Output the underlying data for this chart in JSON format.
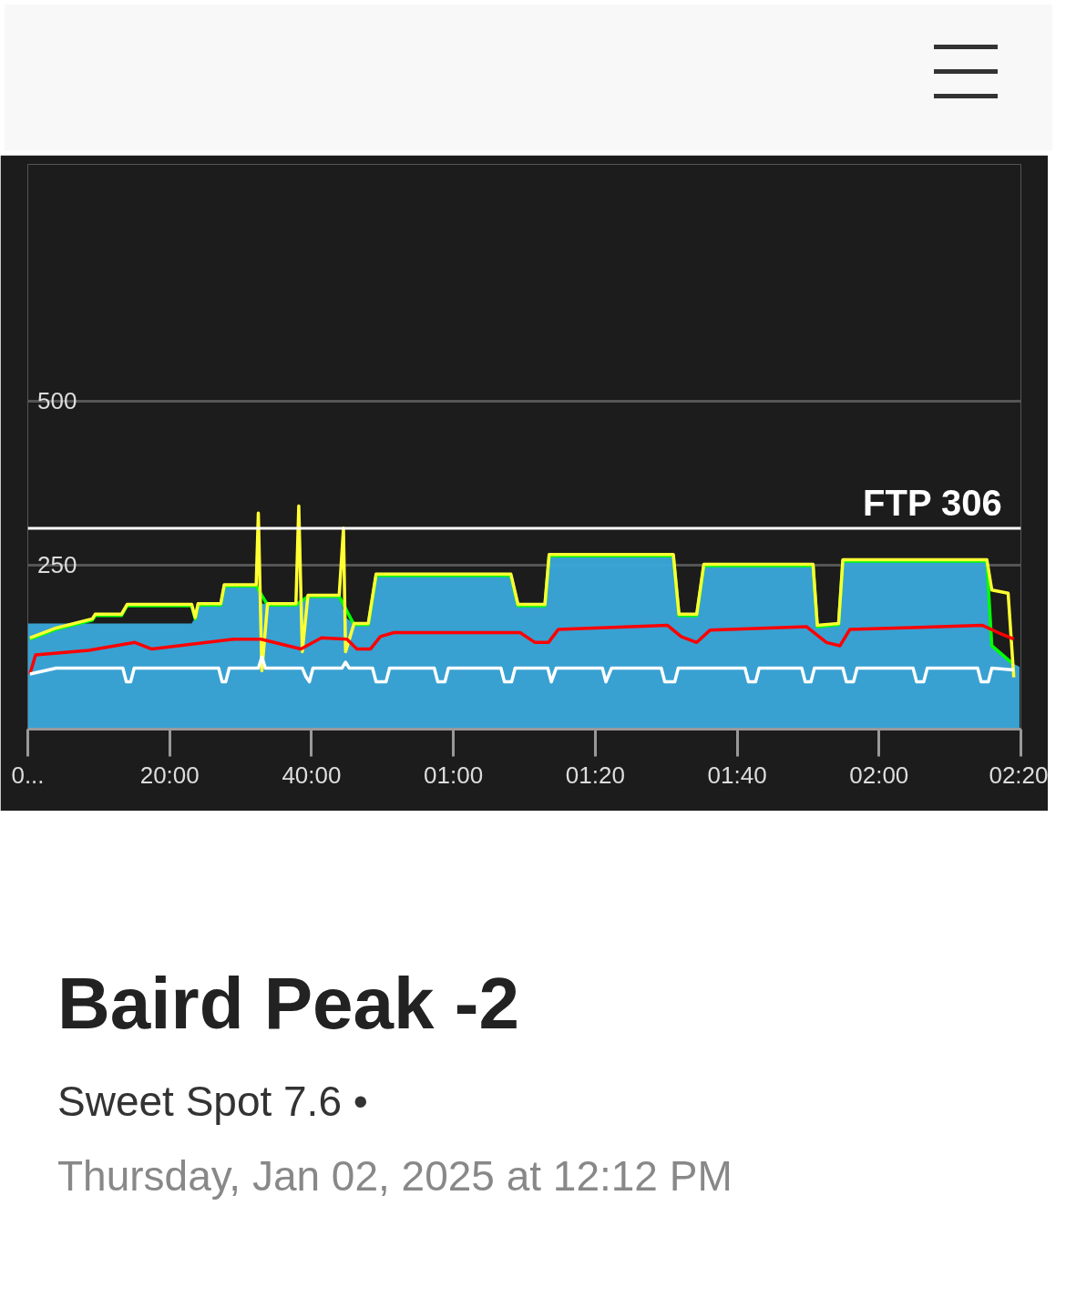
{
  "chart_data": {
    "type": "line",
    "title": "Baird Peak -2",
    "subtitle": "Sweet Spot 7.6 •",
    "annotations": [
      "Thursday, Jan 02, 2025 at 12:12 PM"
    ],
    "xlim": [
      0,
      140
    ],
    "ylim": [
      0,
      860
    ],
    "xticks": [
      {
        "value": 0,
        "label": "0..."
      },
      {
        "value": 20,
        "label": "20:00"
      },
      {
        "value": 40,
        "label": "40:00"
      },
      {
        "value": 60,
        "label": "01:00"
      },
      {
        "value": 80,
        "label": "01:20"
      },
      {
        "value": 100,
        "label": "01:40"
      },
      {
        "value": 120,
        "label": "02:00"
      },
      {
        "value": 140,
        "label": "02:20"
      }
    ],
    "yticks": [
      250,
      500
    ],
    "grid": "y",
    "ref_lines": [
      {
        "axis": "y",
        "value": 306,
        "label": "FTP 306",
        "color": "#ffffff"
      }
    ],
    "series": [
      {
        "type": "area",
        "color": "#3aa9dc",
        "x": [
          0,
          23.1,
          23.6,
          24.0,
          27.2,
          27.7,
          32.2,
          33.0,
          37.8,
          39.5,
          43.9,
          44.8,
          46.0,
          48.0,
          49.1,
          68.1,
          69.1,
          72.9,
          73.5,
          91.0,
          91.8,
          94.3,
          95.3,
          110.7,
          111.3,
          114.3,
          114.9,
          135.2,
          135.9,
          138.7,
          139.8
        ],
        "values": [
          161,
          161,
          170,
          191,
          191,
          220,
          220,
          191,
          191,
          204,
          204,
          170,
          161,
          161,
          236,
          236,
          190,
          190,
          266,
          266,
          175,
          175,
          251,
          251,
          158,
          161,
          258,
          258,
          127,
          101,
          95
        ]
      },
      {
        "color": "#00ff00",
        "x": [
          0.3,
          4.0,
          9.1,
          9.5,
          13.2,
          14.0,
          23.1,
          23.6,
          24.0,
          27.2,
          27.7,
          32.2,
          33.8,
          37.8,
          39.5,
          43.9,
          46.0,
          48.0,
          49.1,
          68.1,
          69.1,
          72.9,
          73.5,
          91.0,
          91.8,
          94.3,
          95.3,
          110.7,
          111.3,
          114.3,
          114.9,
          135.2,
          135.9,
          138.7
        ],
        "values": [
          137,
          152,
          166,
          173,
          173,
          188,
          188,
          168,
          189,
          189,
          218,
          218,
          189,
          189,
          202,
          202,
          159,
          159,
          234,
          234,
          188,
          188,
          264,
          264,
          173,
          173,
          249,
          249,
          156,
          159,
          256,
          256,
          127,
          101
        ]
      },
      {
        "type": "line",
        "color": "#ffff33",
        "x": [
          0.3,
          4.0,
          9.1,
          9.5,
          13.2,
          14.0,
          23.1,
          23.6,
          24.0,
          27.2,
          27.7,
          32.2,
          32.5,
          33.0,
          33.8,
          37.8,
          38.2,
          38.7,
          39.5,
          43.9,
          44.5,
          44.8,
          46.0,
          48.0,
          49.1,
          68.1,
          69.1,
          72.9,
          73.5,
          91.0,
          91.8,
          94.3,
          95.3,
          110.7,
          111.3,
          114.3,
          114.9,
          135.2,
          135.9,
          138.2,
          139.0
        ],
        "values": [
          139,
          154,
          168,
          175,
          175,
          190,
          190,
          170,
          191,
          191,
          220,
          220,
          329,
          89,
          191,
          191,
          340,
          118,
          204,
          204,
          306,
          118,
          161,
          161,
          236,
          236,
          190,
          190,
          266,
          266,
          175,
          175,
          251,
          251,
          158,
          161,
          258,
          258,
          212,
          207,
          79
        ]
      },
      {
        "type": "line",
        "color": "#ff0000",
        "x": [
          0.3,
          1.1,
          8.6,
          15.1,
          17.5,
          29.1,
          32.9,
          38.5,
          41.4,
          45.0,
          46.4,
          48.3,
          49.7,
          51.6,
          69.4,
          71.5,
          73.4,
          74.8,
          90.2,
          92.1,
          94.3,
          96.2,
          109.8,
          112.6,
          114.5,
          115.9,
          134.6,
          136.8,
          139.0
        ],
        "values": [
          84,
          113,
          120,
          132,
          122,
          137,
          137,
          122,
          139,
          137,
          122,
          122,
          141,
          147,
          147,
          132,
          132,
          152,
          158,
          141,
          132,
          151,
          156,
          132,
          127,
          152,
          158,
          147,
          137
        ]
      },
      {
        "type": "line",
        "color": "#ffffff",
        "x": [
          0.3,
          4,
          13.4,
          13.9,
          14.5,
          15,
          26.9,
          27.4,
          27.9,
          28.4,
          32.5,
          33,
          33.5,
          38.7,
          39.2,
          39.7,
          40.2,
          44.3,
          44.8,
          45.3,
          48.6,
          49.1,
          50.5,
          51,
          57.3,
          57.8,
          58.8,
          59.3,
          66.7,
          67.2,
          68.2,
          68.7,
          73.3,
          73.8,
          74.5,
          81,
          81.5,
          82.3,
          89.3,
          89.8,
          91.2,
          91.7,
          101.1,
          101.6,
          102.6,
          103.1,
          109.1,
          109.6,
          110.4,
          110.9,
          114.9,
          115.4,
          116.4,
          116.9,
          124.8,
          125.3,
          126.3,
          126.8,
          133.9,
          134.4,
          135.4,
          135.9,
          139
        ],
        "values": [
          84,
          93,
          93,
          72,
          72,
          93,
          93,
          72,
          72,
          93,
          93,
          110,
          93,
          93,
          80,
          72,
          93,
          93,
          102,
          93,
          93,
          72,
          72,
          93,
          93,
          72,
          72,
          93,
          93,
          72,
          72,
          93,
          93,
          72,
          93,
          93,
          72,
          93,
          93,
          72,
          72,
          93,
          93,
          72,
          72,
          93,
          93,
          72,
          72,
          93,
          93,
          72,
          72,
          93,
          93,
          72,
          72,
          93,
          93,
          72,
          72,
          93,
          90
        ]
      }
    ]
  }
}
